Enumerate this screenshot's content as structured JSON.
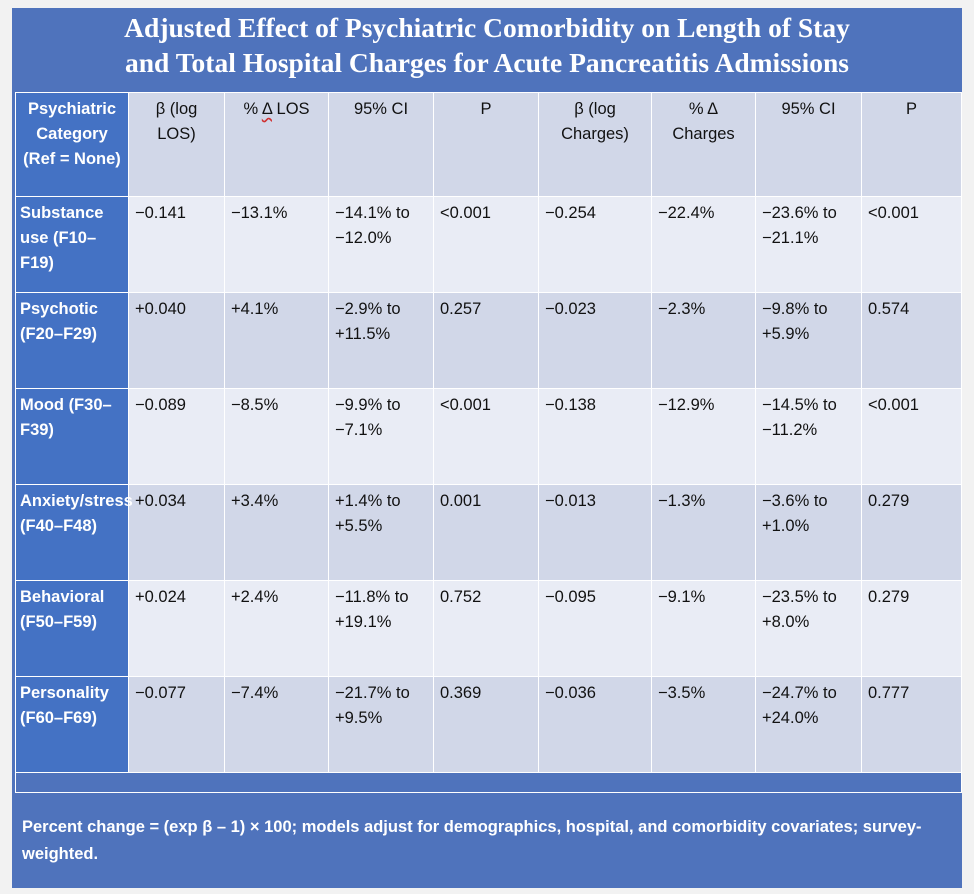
{
  "title_line1": "Adjusted Effect of Psychiatric Comorbidity on Length of Stay",
  "title_line2": "and Total Hospital Charges for Acute Pancreatitis Admissions",
  "headers": {
    "category": "Psychiatric Category (Ref = None)",
    "beta_los": "β (log LOS)",
    "pct_los_prefix": "% ",
    "pct_los_delta": "Δ",
    "pct_los_suffix": " LOS",
    "ci_los": "95% CI",
    "p_los": "P",
    "beta_charges": "β (log Charges)",
    "pct_charges": "% Δ Charges",
    "ci_charges": "95% CI",
    "p_charges": "P"
  },
  "rows": [
    {
      "category": "Substance use (F10–F19)",
      "beta_los": "−0.141",
      "pct_los": "−13.1%",
      "ci_los": "−14.1% to −12.0%",
      "p_los": "<0.001",
      "beta_charges": "−0.254",
      "pct_charges": "−22.4%",
      "ci_charges": "−23.6% to −21.1%",
      "p_charges": "<0.001"
    },
    {
      "category": "Psychotic (F20–F29)",
      "beta_los": "+0.040",
      "pct_los": "+4.1%",
      "ci_los": "−2.9% to +11.5%",
      "p_los": "0.257",
      "beta_charges": "−0.023",
      "pct_charges": "−2.3%",
      "ci_charges": "−9.8% to +5.9%",
      "p_charges": "0.574"
    },
    {
      "category": "Mood (F30–F39)",
      "beta_los": "−0.089",
      "pct_los": "−8.5%",
      "ci_los": "−9.9% to −7.1%",
      "p_los": "<0.001",
      "beta_charges": "−0.138",
      "pct_charges": "−12.9%",
      "ci_charges": "−14.5% to −11.2%",
      "p_charges": "<0.001"
    },
    {
      "category": "Anxiety/stress (F40–F48)",
      "beta_los": "+0.034",
      "pct_los": "+3.4%",
      "ci_los": "+1.4% to +5.5%",
      "p_los": "0.001",
      "beta_charges": "−0.013",
      "pct_charges": "−1.3%",
      "ci_charges": "−3.6% to +1.0%",
      "p_charges": "0.279"
    },
    {
      "category": "Behavioral (F50–F59)",
      "beta_los": "+0.024",
      "pct_los": "+2.4%",
      "ci_los": "−11.8% to +19.1%",
      "p_los": "0.752",
      "beta_charges": "−0.095",
      "pct_charges": "−9.1%",
      "ci_charges": "−23.5% to +8.0%",
      "p_charges": "0.279"
    },
    {
      "category": "Personality (F60–F69)",
      "beta_los": "−0.077",
      "pct_los": "−7.4%",
      "ci_los": "−21.7% to +9.5%",
      "p_los": "0.369",
      "beta_charges": "−0.036",
      "pct_charges": "−3.5%",
      "ci_charges": "−24.7% to +24.0%",
      "p_charges": "0.777"
    }
  ],
  "footnote": "Percent change = (exp β – 1) × 100; models adjust for demographics, hospital, and comorbidity covariates; survey-weighted.",
  "colors": {
    "frame": "#4f73bc",
    "category_column": "#4472c4",
    "row_light": "#e9ecf5",
    "row_dark": "#d1d7e8"
  }
}
